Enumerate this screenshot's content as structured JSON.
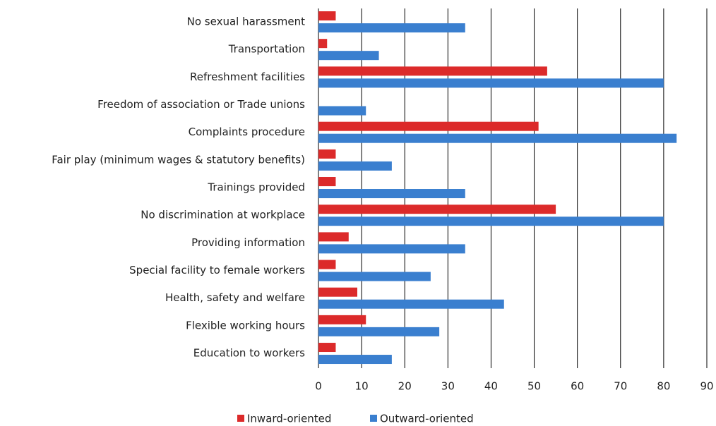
{
  "chart_data": {
    "type": "bar",
    "orientation": "horizontal",
    "categories": [
      "No sexual harassment",
      "Transportation",
      "Refreshment facilities",
      "Freedom of association or Trade unions",
      "Complaints procedure",
      "Fair play (minimum wages & statutory benefits)",
      "Trainings provided",
      "No discrimination at workplace",
      "Providing information",
      "Special facility to female workers",
      "Health, safety and welfare",
      "Flexible working hours",
      "Education to workers"
    ],
    "series": [
      {
        "name": "Inward-oriented",
        "color": "#dc2a2a",
        "values": [
          4,
          2,
          53,
          0,
          51,
          4,
          4,
          55,
          7,
          4,
          9,
          11,
          4
        ]
      },
      {
        "name": "Outward-oriented",
        "color": "#3a7fcf",
        "values": [
          34,
          14,
          80,
          11,
          83,
          17,
          34,
          80,
          34,
          26,
          43,
          28,
          17
        ]
      }
    ],
    "xlim": [
      0,
      90
    ],
    "xticks": [
      0,
      10,
      20,
      30,
      40,
      50,
      60,
      70,
      80,
      90
    ],
    "grid": true,
    "legend": "bottom"
  }
}
